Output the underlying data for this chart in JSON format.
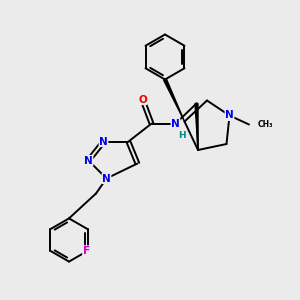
{
  "background_color": "#ebebeb",
  "bond_color": "#000000",
  "atom_colors": {
    "N": "#0000ee",
    "O": "#ee0000",
    "F": "#cc00cc",
    "H": "#008888",
    "C": "#000000"
  },
  "figsize": [
    3.0,
    3.0
  ],
  "dpi": 100
}
